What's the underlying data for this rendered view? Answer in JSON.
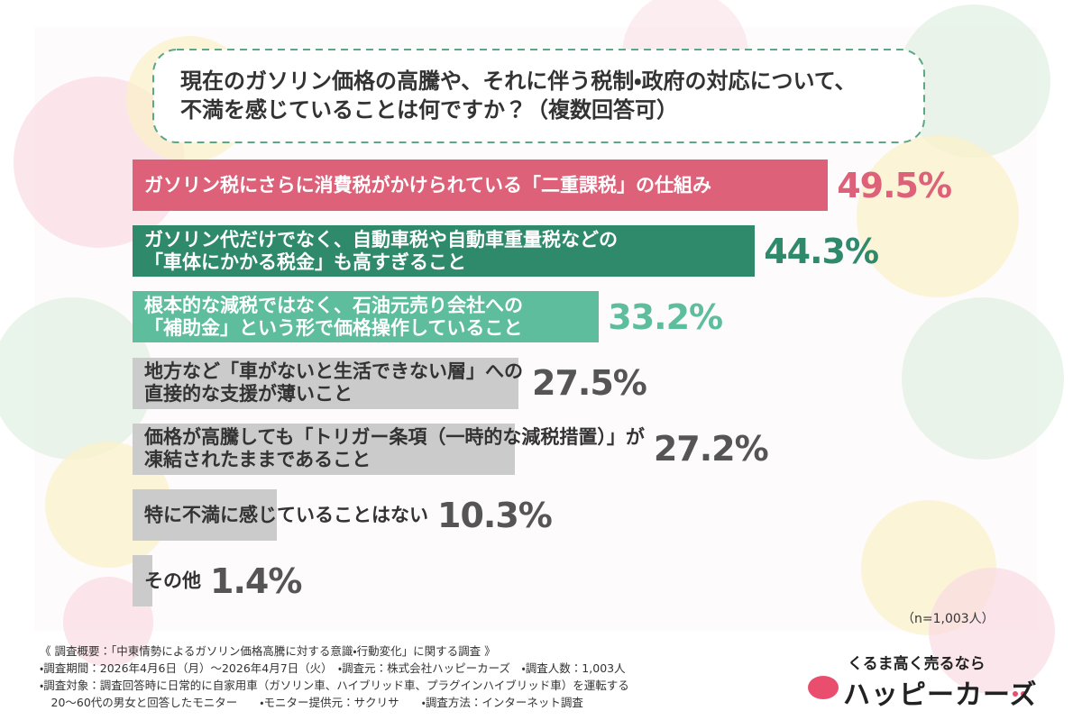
{
  "chart_data": {
    "type": "bar",
    "title": "現在のガソリン価格の高騰や、それに伴う税制・政府の対応について、\n不満を感じていることは何ですか？（複数回答可）",
    "categories": [
      "ガソリン税にさらに消費税がかけられている「二重課税」の仕組み",
      "ガソリン代だけでなく、自動車税や自動車重量税などの\n「車体にかかる税金」も高すぎること",
      "根本的な減税ではなく、石油元売り会社への\n「補助金」という形で価格操作していること",
      "地方など「車がないと生活できない層」への\n直接的な支援が薄いこと",
      "価格が高騰しても「トリガー条項（一時的な減税措置）」が\n凍結されたままであること",
      "特に不満に感じていることはない",
      "その他"
    ],
    "values": [
      49.5,
      44.3,
      33.2,
      27.5,
      27.2,
      10.3,
      1.4
    ],
    "value_labels": [
      "49.5%",
      "44.3%",
      "33.2%",
      "27.5%",
      "27.2%",
      "10.3%",
      "1.4%"
    ],
    "colors": [
      "#dc6179",
      "#2f8a6c",
      "#5dbd9d",
      "#cbcbcb",
      "#cbcbcb",
      "#cbcbcb",
      "#cbcbcb"
    ],
    "label_colors": [
      "#ffffff",
      "#ffffff",
      "#ffffff",
      "#333333",
      "#333333",
      "#333333",
      "#333333"
    ],
    "value_colors": [
      "#dc6179",
      "#2f8a6c",
      "#5dbd9d",
      "#555555",
      "#555555",
      "#555555",
      "#555555"
    ],
    "note": "（n=1,003人）"
  },
  "footer": {
    "lines": [
      "《 調査概要：「中東情勢によるガソリン価格高騰に対する意識・行動変化」に関する調査 》",
      "・調査期間：2026年4月6日（月）～2026年4月7日（火）　・調査元：株式会社ハッピーカーズ　・調査人数：1,003人",
      "・調査対象：調査回答時に日常的に自家用車（ガソリン車、ハイブリッド車、プラグインハイブリッド車）を運転する",
      "　20～60代の男女と回答したモニター　　・モニター提供元：サクリサ　　・調査方法：インターネット調査"
    ],
    "tagline": "くるま高く売るなら",
    "brand": "ハッピーカーズ"
  }
}
